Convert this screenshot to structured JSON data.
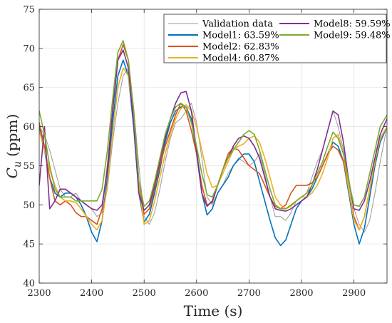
{
  "chart_data": {
    "type": "line",
    "title": "",
    "xlabel": "Time (s)",
    "ylabel_main": "C",
    "ylabel_sub": "u",
    "ylabel_unit": "(ppm)",
    "xlim": [
      2300,
      2963
    ],
    "ylim": [
      40,
      75
    ],
    "xticks": [
      2300,
      2400,
      2500,
      2600,
      2700,
      2800,
      2900
    ],
    "yticks": [
      40,
      45,
      50,
      55,
      60,
      65,
      70,
      75
    ],
    "grid": true,
    "legend_position": "top-right",
    "legend_columns": 2,
    "x": [
      2300,
      2310,
      2320,
      2330,
      2340,
      2350,
      2360,
      2370,
      2380,
      2390,
      2400,
      2410,
      2420,
      2430,
      2440,
      2450,
      2460,
      2470,
      2480,
      2490,
      2500,
      2510,
      2520,
      2530,
      2540,
      2550,
      2560,
      2570,
      2580,
      2590,
      2600,
      2610,
      2620,
      2630,
      2640,
      2650,
      2660,
      2670,
      2680,
      2690,
      2700,
      2710,
      2720,
      2730,
      2740,
      2750,
      2760,
      2770,
      2780,
      2790,
      2800,
      2810,
      2820,
      2830,
      2840,
      2850,
      2860,
      2870,
      2880,
      2890,
      2900,
      2910,
      2920,
      2930,
      2940,
      2950,
      2963
    ],
    "series": [
      {
        "name": "Validation data",
        "color": "#999999",
        "width": 1,
        "values": [
          60.0,
          59.0,
          57.0,
          54.5,
          52.0,
          51.0,
          51.0,
          51.5,
          50.5,
          50.0,
          49.5,
          48.5,
          49.0,
          52.0,
          58.0,
          63.0,
          66.5,
          67.5,
          62.5,
          55.0,
          48.5,
          47.5,
          49.0,
          52.0,
          55.5,
          58.5,
          60.5,
          61.0,
          62.0,
          63.0,
          60.5,
          56.0,
          51.0,
          50.0,
          51.5,
          52.5,
          54.0,
          55.0,
          56.0,
          55.5,
          55.0,
          55.5,
          56.5,
          54.0,
          51.0,
          48.5,
          48.5,
          48.0,
          49.0,
          50.5,
          51.0,
          51.5,
          53.5,
          55.5,
          57.0,
          59.5,
          62.0,
          60.0,
          57.0,
          53.5,
          49.5,
          47.5,
          46.5,
          48.0,
          51.5,
          55.5,
          60.0
        ]
      },
      {
        "name": "Model1: 63.59%",
        "color": "#0072BD",
        "width": 1.6,
        "values": [
          60.0,
          57.0,
          53.5,
          51.5,
          51.0,
          51.5,
          51.5,
          51.0,
          50.0,
          48.5,
          46.5,
          45.3,
          48.0,
          53.5,
          60.5,
          66.5,
          68.5,
          66.5,
          60.0,
          51.5,
          47.8,
          48.8,
          51.5,
          54.5,
          58.0,
          60.5,
          62.0,
          62.5,
          62.5,
          61.0,
          56.5,
          51.5,
          48.7,
          49.5,
          51.5,
          52.5,
          53.5,
          55.0,
          55.8,
          56.5,
          56.5,
          55.5,
          53.0,
          50.5,
          48.0,
          45.8,
          44.8,
          45.5,
          47.5,
          49.5,
          50.5,
          51.0,
          52.0,
          53.5,
          55.0,
          56.5,
          58.0,
          57.5,
          55.5,
          51.5,
          47.5,
          45.0,
          47.0,
          51.0,
          55.0,
          58.0,
          60.0
        ]
      },
      {
        "name": "Model2: 62.83%",
        "color": "#D95319",
        "width": 1.6,
        "values": [
          60.5,
          57.5,
          53.5,
          50.5,
          50.0,
          50.5,
          50.0,
          49.0,
          48.5,
          48.5,
          48.0,
          47.5,
          49.5,
          55.0,
          62.0,
          68.5,
          70.5,
          68.5,
          62.0,
          53.0,
          48.8,
          49.5,
          52.0,
          55.0,
          57.5,
          59.5,
          61.5,
          63.0,
          62.0,
          59.5,
          56.5,
          52.5,
          50.0,
          50.3,
          52.5,
          54.5,
          56.5,
          57.3,
          57.0,
          56.0,
          55.0,
          54.5,
          54.0,
          52.5,
          51.0,
          49.8,
          49.5,
          50.0,
          51.5,
          52.5,
          52.5,
          52.5,
          52.8,
          53.5,
          55.0,
          56.5,
          57.5,
          57.0,
          55.5,
          52.0,
          48.5,
          46.8,
          48.5,
          52.0,
          55.5,
          58.5,
          60.0
        ]
      },
      {
        "name": "Model4: 60.87%",
        "color": "#EDB120",
        "width": 1.6,
        "values": [
          59.5,
          57.0,
          54.5,
          52.5,
          51.0,
          50.5,
          50.5,
          50.3,
          49.5,
          48.5,
          47.5,
          46.8,
          48.0,
          52.5,
          59.0,
          65.0,
          67.5,
          66.5,
          61.0,
          52.5,
          47.5,
          48.0,
          50.5,
          53.5,
          56.5,
          59.0,
          61.0,
          62.3,
          62.8,
          62.0,
          60.0,
          57.0,
          54.0,
          52.2,
          52.5,
          54.0,
          55.5,
          57.0,
          57.5,
          57.8,
          58.5,
          58.8,
          58.0,
          56.0,
          53.5,
          51.0,
          50.0,
          49.5,
          49.8,
          50.5,
          51.0,
          51.0,
          51.5,
          52.5,
          54.0,
          56.0,
          58.5,
          59.0,
          56.5,
          52.0,
          48.0,
          46.8,
          48.5,
          52.0,
          55.5,
          58.5,
          60.0
        ]
      },
      {
        "name": "Model8: 59.59%",
        "color": "#7E2F8E",
        "width": 1.6,
        "values": [
          52.5,
          60.0,
          49.5,
          50.5,
          52.0,
          52.0,
          51.5,
          51.0,
          50.5,
          50.0,
          49.5,
          49.3,
          50.0,
          54.5,
          62.0,
          68.5,
          69.8,
          67.5,
          60.5,
          51.5,
          49.3,
          50.0,
          52.5,
          55.5,
          58.5,
          61.0,
          63.0,
          64.3,
          64.5,
          62.0,
          57.0,
          51.5,
          49.8,
          50.5,
          52.5,
          54.5,
          56.0,
          57.5,
          58.5,
          58.8,
          58.5,
          57.5,
          56.0,
          53.5,
          51.0,
          49.5,
          49.3,
          49.2,
          49.5,
          50.0,
          50.5,
          51.0,
          52.5,
          54.5,
          57.0,
          59.5,
          62.0,
          61.5,
          58.0,
          53.0,
          49.5,
          49.3,
          50.5,
          53.0,
          56.0,
          59.0,
          61.0
        ]
      },
      {
        "name": "Model9: 59.48%",
        "color": "#77AC30",
        "width": 1.6,
        "values": [
          62.0,
          59.0,
          55.0,
          52.0,
          51.0,
          51.0,
          51.0,
          50.5,
          50.5,
          50.5,
          50.5,
          50.5,
          52.0,
          57.0,
          63.5,
          69.5,
          71.0,
          68.5,
          62.0,
          53.0,
          49.8,
          50.5,
          53.0,
          56.0,
          59.0,
          61.0,
          62.5,
          63.0,
          62.5,
          60.5,
          57.5,
          54.0,
          51.3,
          51.0,
          52.5,
          54.5,
          56.0,
          57.0,
          58.0,
          59.0,
          59.5,
          59.0,
          57.0,
          54.5,
          52.0,
          50.0,
          49.5,
          49.5,
          50.0,
          50.5,
          51.0,
          51.5,
          52.5,
          54.0,
          55.5,
          57.5,
          59.3,
          58.5,
          56.5,
          53.0,
          50.0,
          49.8,
          51.0,
          54.0,
          57.0,
          60.0,
          61.5
        ]
      }
    ]
  }
}
